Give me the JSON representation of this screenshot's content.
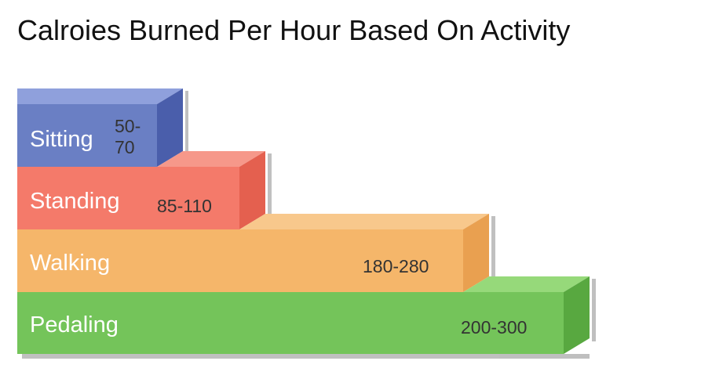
{
  "title": "Calroies Burned Per Hour Based On Activity",
  "items": [
    {
      "label": "Sitting",
      "range": "50-70"
    },
    {
      "label": "Standing",
      "range": "85-110"
    },
    {
      "label": "Walking",
      "range": "180-280"
    },
    {
      "label": "Pedaling",
      "range": "200-300"
    }
  ]
}
